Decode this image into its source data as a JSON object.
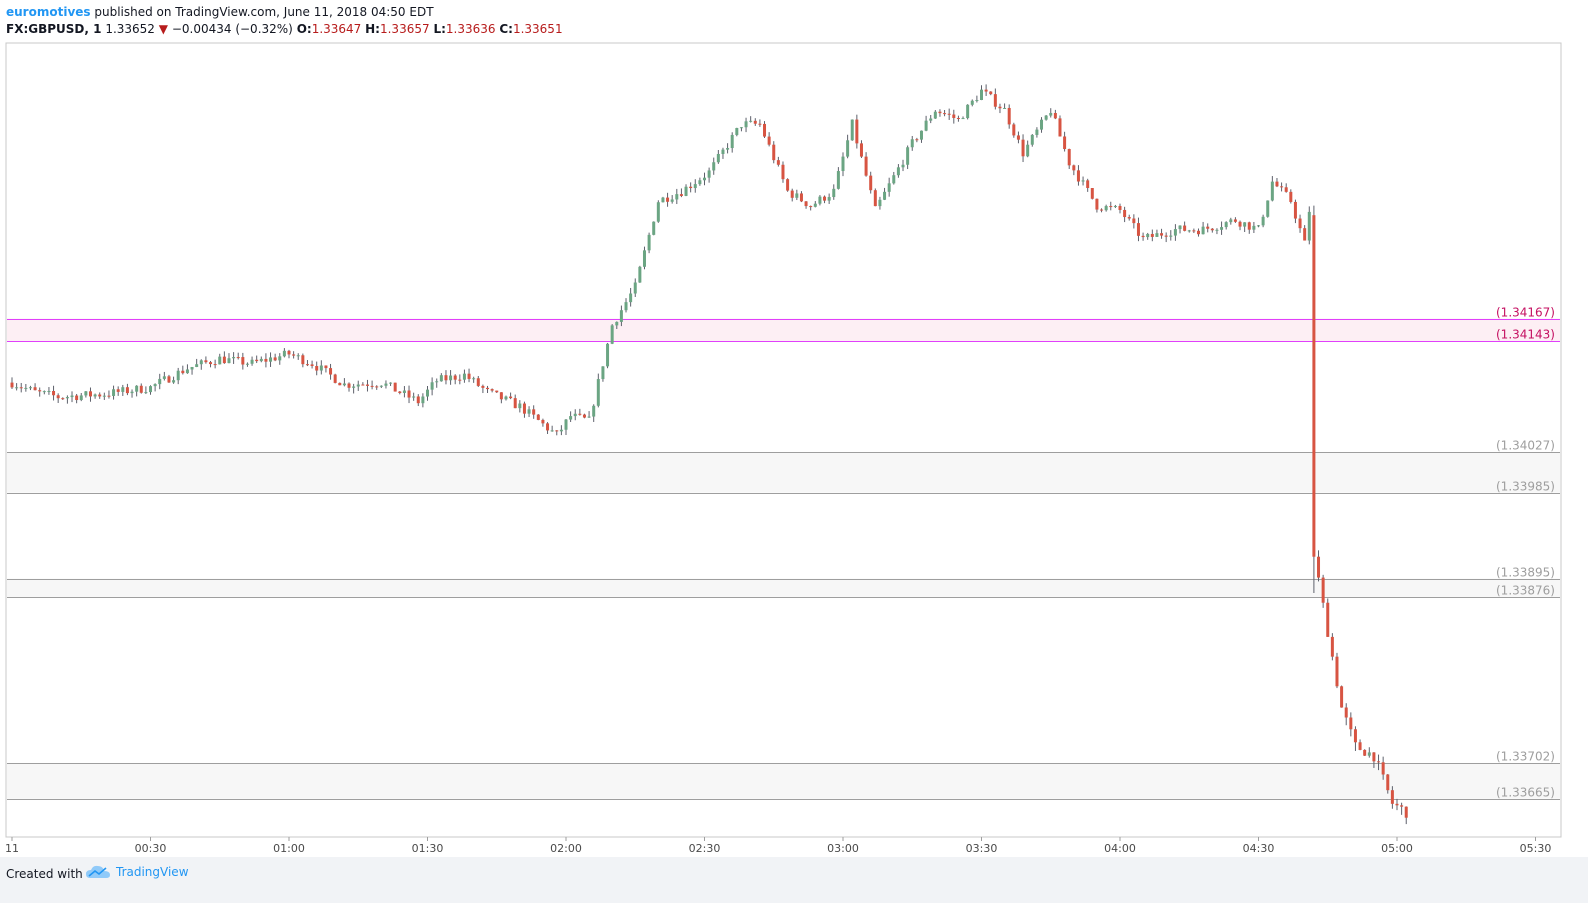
{
  "header": {
    "author": "euromotives",
    "published": " published on TradingView.com, June 11, 2018 04:50 EDT",
    "symbol": "FX:GBPUSD, 1",
    "last": "1.33652",
    "change": "−0.00434 (−0.32%)",
    "open_label": "O:",
    "open": "1.33647",
    "high_label": "H:",
    "high": "1.33657",
    "low_label": "L:",
    "low": "1.33636",
    "close_label": "C:",
    "close": "1.33651"
  },
  "footer": {
    "created": "Created with",
    "brand": "TradingView"
  },
  "colors": {
    "up": "#6ba583",
    "down": "#d75442",
    "magenta": "#e040fb",
    "level": "#9e9e9e",
    "zone": "#f7f7f7",
    "zone_magenta": "#fce4ec"
  },
  "chart_data": {
    "type": "candlestick",
    "interval_minutes": 1,
    "x_ticks": [
      "11",
      "00:30",
      "01:00",
      "01:30",
      "02:00",
      "02:30",
      "03:00",
      "03:30",
      "04:00",
      "04:30",
      "05:00",
      "05:30"
    ],
    "levels": [
      {
        "value": 1.34167,
        "label": "(1.34167)",
        "style": "magenta"
      },
      {
        "value": 1.34143,
        "label": "(1.34143)",
        "style": "magenta"
      },
      {
        "value": 1.34027,
        "label": "(1.34027)",
        "style": "grey"
      },
      {
        "value": 1.33985,
        "label": "(1.33985)",
        "style": "grey"
      },
      {
        "value": 1.33895,
        "label": "(1.33895)",
        "style": "grey"
      },
      {
        "value": 1.33876,
        "label": "(1.33876)",
        "style": "grey"
      },
      {
        "value": 1.33702,
        "label": "(1.33702)",
        "style": "grey"
      },
      {
        "value": 1.33665,
        "label": "(1.33665)",
        "style": "grey"
      }
    ],
    "zones": [
      [
        1.34143,
        1.34167,
        "magenta"
      ],
      [
        1.33985,
        1.34027,
        "grey"
      ],
      [
        1.33876,
        1.33895,
        "grey"
      ],
      [
        1.33665,
        1.33702,
        "grey"
      ]
    ],
    "y_range": [
      1.33625,
      1.34455
    ],
    "price_path": [
      [
        0,
        1.341
      ],
      [
        5,
        1.3409
      ],
      [
        10,
        1.34085
      ],
      [
        20,
        1.34088
      ],
      [
        30,
        1.34095
      ],
      [
        38,
        1.34115
      ],
      [
        45,
        1.34125
      ],
      [
        52,
        1.3412
      ],
      [
        60,
        1.3413
      ],
      [
        65,
        1.3412
      ],
      [
        72,
        1.34098
      ],
      [
        80,
        1.341
      ],
      [
        88,
        1.3408
      ],
      [
        92,
        1.34102
      ],
      [
        98,
        1.34108
      ],
      [
        103,
        1.3409
      ],
      [
        110,
        1.34075
      ],
      [
        118,
        1.34045
      ],
      [
        121,
        1.34065
      ],
      [
        125,
        1.3406
      ],
      [
        127,
        1.341
      ],
      [
        130,
        1.3416
      ],
      [
        135,
        1.342
      ],
      [
        140,
        1.3429
      ],
      [
        145,
        1.343
      ],
      [
        151,
        1.3432
      ],
      [
        158,
        1.3437
      ],
      [
        162,
        1.3437
      ],
      [
        168,
        1.343
      ],
      [
        173,
        1.34285
      ],
      [
        178,
        1.343
      ],
      [
        182,
        1.3437
      ],
      [
        187,
        1.3428
      ],
      [
        195,
        1.3435
      ],
      [
        200,
        1.34385
      ],
      [
        205,
        1.34375
      ],
      [
        210,
        1.34405
      ],
      [
        215,
        1.34385
      ],
      [
        219,
        1.3434
      ],
      [
        225,
        1.34385
      ],
      [
        229,
        1.3433
      ],
      [
        235,
        1.34285
      ],
      [
        240,
        1.3428
      ],
      [
        245,
        1.3425
      ],
      [
        252,
        1.3426
      ],
      [
        258,
        1.3426
      ],
      [
        265,
        1.3427
      ],
      [
        270,
        1.3426
      ],
      [
        273,
        1.3431
      ],
      [
        277,
        1.3429
      ],
      [
        280,
        1.34245
      ],
      [
        281,
        1.3428
      ]
    ],
    "drop_path": [
      [
        282,
        1.3392
      ],
      [
        285,
        1.3384
      ],
      [
        288,
        1.3376
      ],
      [
        291,
        1.3372
      ],
      [
        295,
        1.3371
      ],
      [
        299,
        1.3366
      ],
      [
        302,
        1.33651
      ]
    ]
  }
}
